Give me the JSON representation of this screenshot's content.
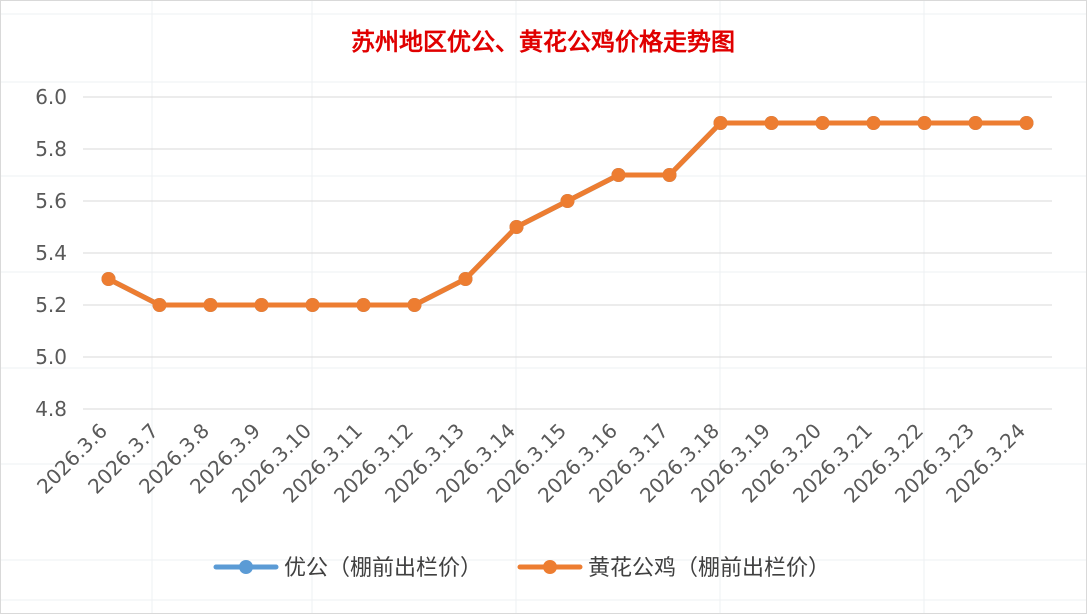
{
  "chart_data": {
    "type": "line",
    "title": "苏州地区优公、黄花公鸡价格走势图",
    "xlabel": "",
    "ylabel": "",
    "categories": [
      "2026.3.6",
      "2026.3.7",
      "2026.3.8",
      "2026.3.9",
      "2026.3.10",
      "2026.3.11",
      "2026.3.12",
      "2026.3.13",
      "2026.3.14",
      "2026.3.15",
      "2026.3.16",
      "2026.3.17",
      "2026.3.18",
      "2026.3.19",
      "2026.3.20",
      "2026.3.21",
      "2026.3.22",
      "2026.3.23",
      "2026.3.24"
    ],
    "y_ticks": [
      "4.8",
      "5.0",
      "5.2",
      "5.4",
      "5.6",
      "5.8",
      "6.0"
    ],
    "ylim": [
      4.8,
      6.0
    ],
    "grid": true,
    "legend_position": "bottom",
    "series": [
      {
        "name": "优公（棚前出栏价）",
        "color": "#5b9bd5",
        "values": [
          5.3,
          5.2,
          5.2,
          5.2,
          5.2,
          5.2,
          5.2,
          5.3,
          5.5,
          5.6,
          5.7,
          5.7,
          5.9,
          5.9,
          5.9,
          5.9,
          5.9,
          5.9,
          5.9
        ]
      },
      {
        "name": "黄花公鸡（棚前出栏价）",
        "color": "#ed7d31",
        "values": [
          5.3,
          5.2,
          5.2,
          5.2,
          5.2,
          5.2,
          5.2,
          5.3,
          5.5,
          5.6,
          5.7,
          5.7,
          5.9,
          5.9,
          5.9,
          5.9,
          5.9,
          5.9,
          5.9
        ]
      }
    ]
  },
  "colors": {
    "title": "#e00000",
    "grid": "#d9d9d9",
    "tick_text": "#595959",
    "legend_text": "#404040"
  }
}
